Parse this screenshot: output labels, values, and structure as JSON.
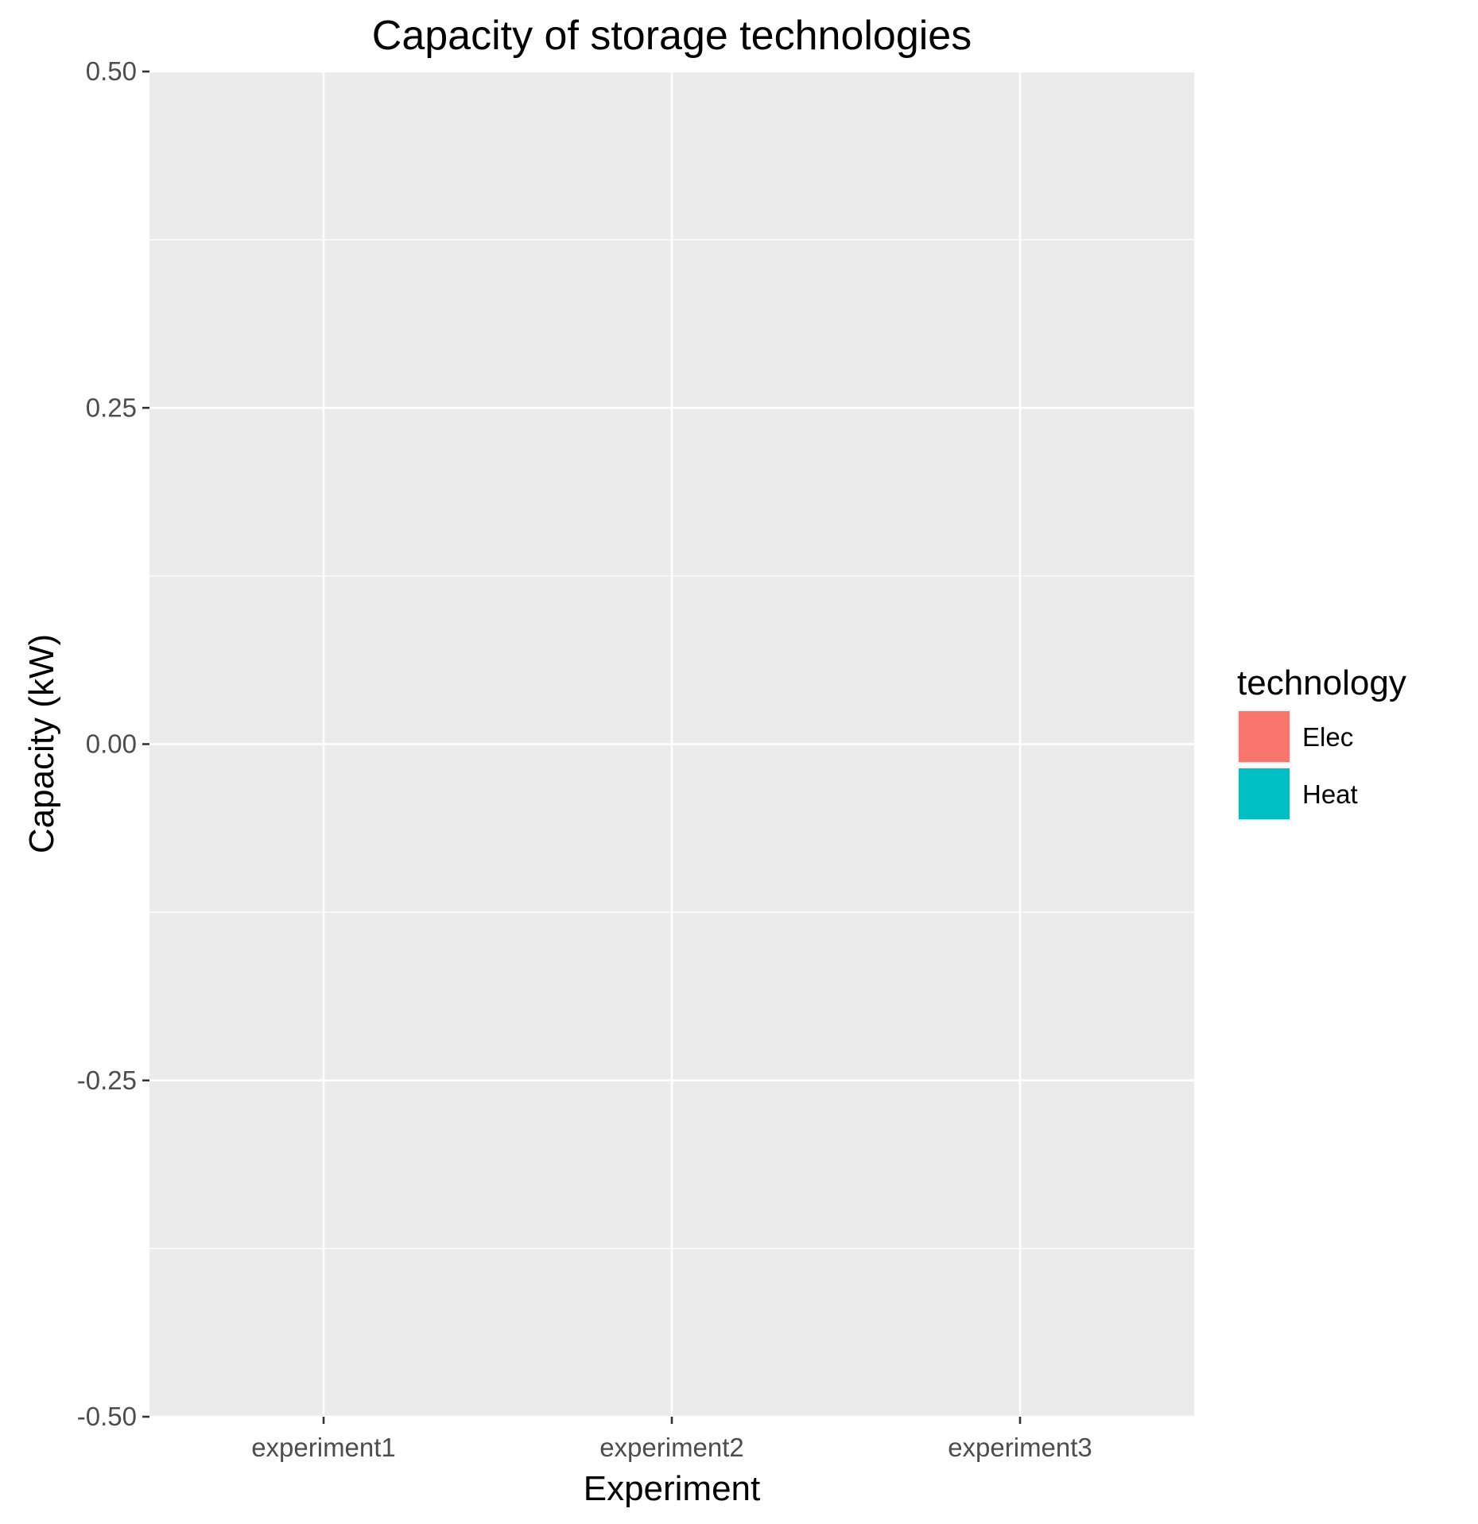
{
  "chart_data": {
    "type": "bar",
    "title": "Capacity of storage technologies",
    "xlabel": "Experiment",
    "ylabel": "Capacity (kW)",
    "categories": [
      "experiment1",
      "experiment2",
      "experiment3"
    ],
    "ylim": [
      -0.5,
      0.5
    ],
    "yticks": [
      -0.5,
      -0.25,
      0.0,
      0.25,
      0.5
    ],
    "ytick_labels": [
      "-0.50",
      "-0.25",
      "0.00",
      "0.25",
      "0.50"
    ],
    "grid": true,
    "panel_background": "#EBEBEB",
    "legend": {
      "title": "technology",
      "placement": "right",
      "entries": [
        {
          "label": "Elec",
          "color": "#F8766D"
        },
        {
          "label": "Heat",
          "color": "#00BFC4"
        }
      ]
    },
    "series": [
      {
        "name": "Elec",
        "values": [
          null,
          null,
          null
        ]
      },
      {
        "name": "Heat",
        "values": [
          null,
          null,
          null
        ]
      }
    ]
  }
}
